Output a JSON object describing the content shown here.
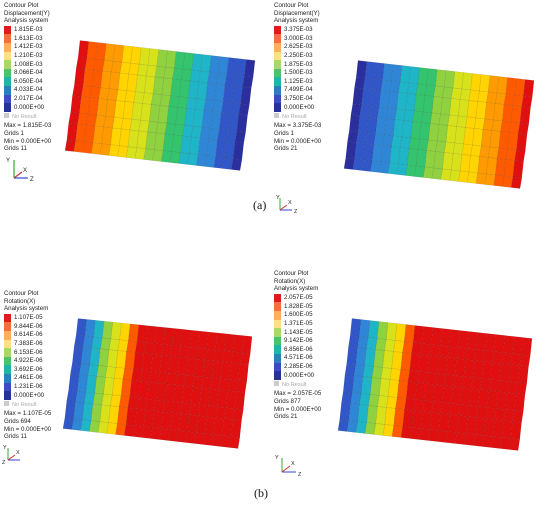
{
  "panels": [
    {
      "id": "a-left",
      "title_lines": [
        "Contour Plot",
        "Displacement(Y)",
        "Analysis system"
      ],
      "values": [
        "1.815E-03",
        "1.613E-03",
        "1.412E-03",
        "1.210E-03",
        "1.008E-03",
        "8.066E-04",
        "6.050E-04",
        "4.033E-04",
        "2.017E-04",
        "0.000E+00"
      ],
      "no_result": "No Result",
      "stats": [
        "Max = 1.815E-03",
        "Grids 1",
        "Min = 0.000E+00",
        "Grids 11"
      ],
      "axes": [
        "Y",
        "X",
        "Z"
      ],
      "gradient": "descending"
    },
    {
      "id": "a-right",
      "title_lines": [
        "Contour Plot",
        "Displacement(Y)",
        "Analysis system"
      ],
      "values": [
        "3.375E-03",
        "3.000E-03",
        "2.625E-03",
        "2.250E-03",
        "1.875E-03",
        "1.500E-03",
        "1.125E-03",
        "7.499E-04",
        "3.750E-04",
        "0.000E+00"
      ],
      "no_result": "No Result",
      "stats": [
        "Max = 3.375E-03",
        "Grids 1",
        "Min = 0.000E+00",
        "Grids 21"
      ],
      "axes": [
        "Y",
        "X",
        "Z"
      ],
      "gradient": "ascending"
    },
    {
      "id": "b-left",
      "title_lines": [
        "Contour Plot",
        "Rotation(X)",
        "Analysis system"
      ],
      "values": [
        "1.107E-05",
        "9.844E-06",
        "8.614E-06",
        "7.383E-06",
        "6.153E-06",
        "4.922E-06",
        "3.692E-06",
        "2.461E-06",
        "1.231E-06",
        "0.000E+00"
      ],
      "no_result": "No Result",
      "stats": [
        "Max = 1.107E-05",
        "Grids 694",
        "Min = 0.000E+00",
        "Grids 11"
      ],
      "axes": [
        "Y",
        "X",
        "Z"
      ],
      "gradient": "plateau"
    },
    {
      "id": "b-right",
      "title_lines": [
        "Contour Plot",
        "Rotation(X)",
        "Analysis system"
      ],
      "values": [
        "2.057E-05",
        "1.828E-05",
        "1.600E-05",
        "1.371E-05",
        "1.143E-05",
        "9.142E-06",
        "6.856E-06",
        "4.571E-06",
        "2.285E-06",
        "0.000E+00"
      ],
      "no_result": "No Result",
      "stats": [
        "Max = 2.057E-05",
        "Grids 877",
        "Min = 0.000E+00",
        "Grids 21"
      ],
      "axes": [
        "Y",
        "X",
        "Z"
      ],
      "gradient": "plateau"
    }
  ],
  "labels": {
    "a": "(a)",
    "b": "(b)"
  },
  "legend_colors": [
    "#e31a1c",
    "#f46d43",
    "#fdae61",
    "#fee08b",
    "#a6d96a",
    "#4cc26a",
    "#1fb5a8",
    "#2c7fb8",
    "#3b4cc0",
    "#253494"
  ],
  "contour_colors": [
    "#2b2f9e",
    "#3056c8",
    "#2f86d6",
    "#1fb5c8",
    "#35c46e",
    "#8fd13f",
    "#d8e21b",
    "#ffd400",
    "#ff9a00",
    "#ff5a00",
    "#e01010"
  ]
}
